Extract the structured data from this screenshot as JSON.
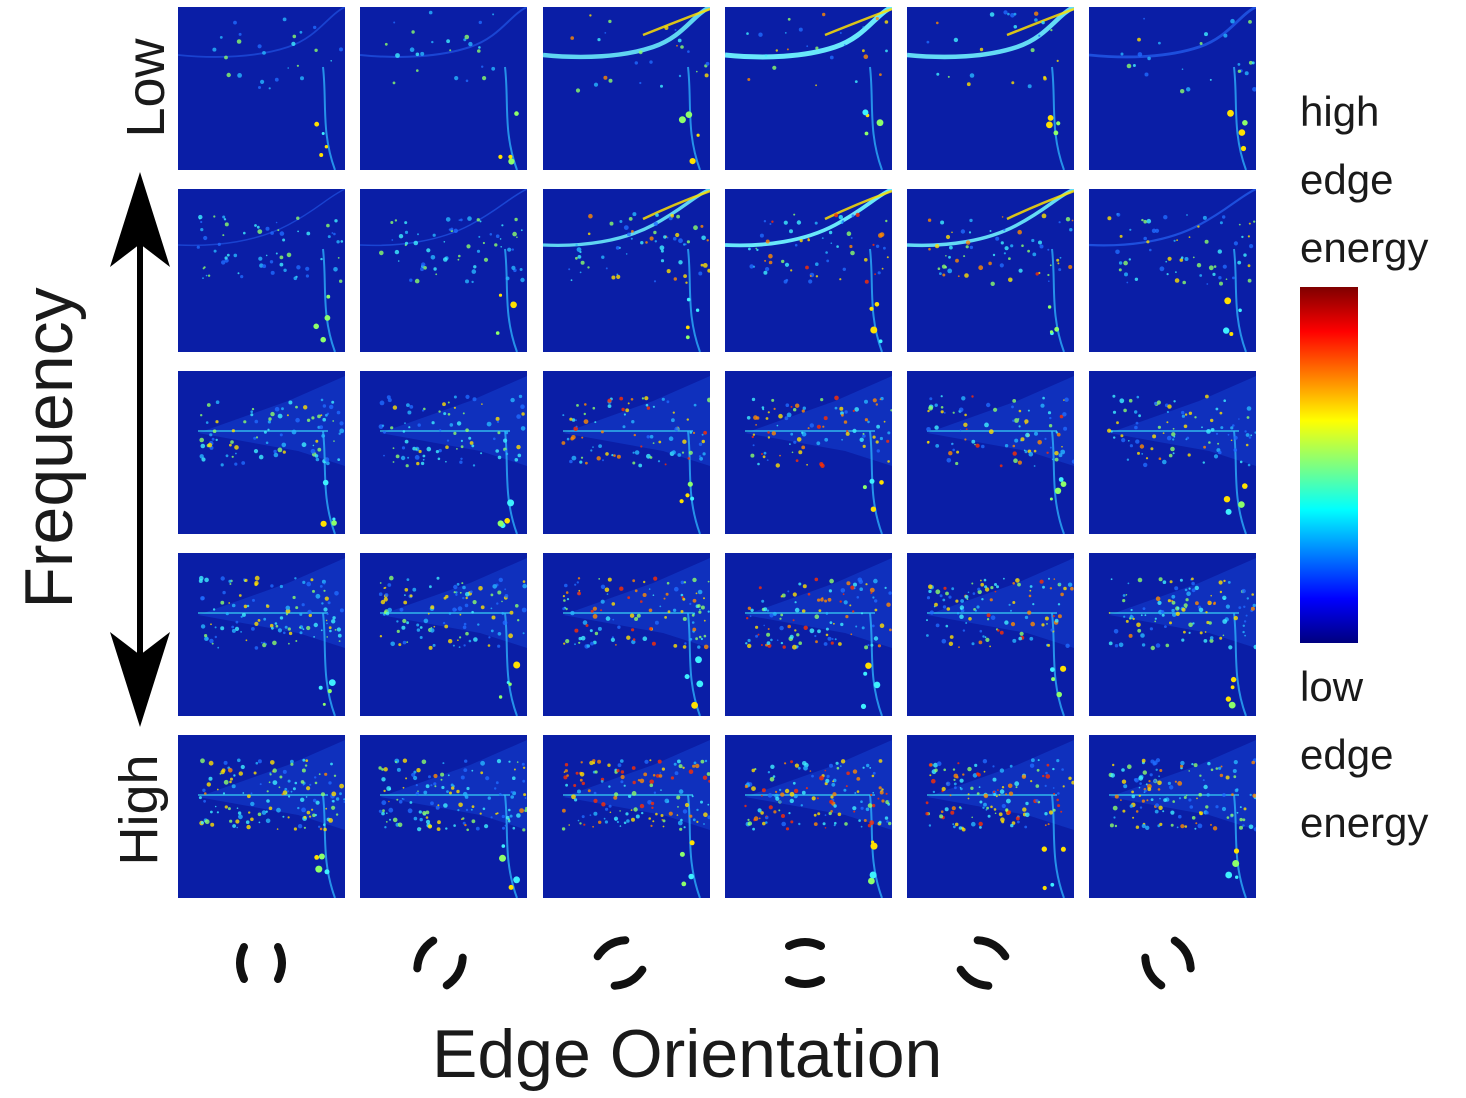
{
  "figure": {
    "y_axis": {
      "title": "Frequency",
      "low_label": "Low",
      "high_label": "High"
    },
    "x_axis": {
      "title": "Edge Orientation",
      "orientation_count": 6
    },
    "grid": {
      "rows": 5,
      "cols": 6,
      "background_color": "#0a1ea6"
    },
    "legend": {
      "high_label_lines": [
        "high",
        "edge",
        "energy"
      ],
      "low_label_lines": [
        "low",
        "edge",
        "energy"
      ],
      "colormap": [
        "#00007f",
        "#0000ff",
        "#007fff",
        "#00ffff",
        "#7fff7f",
        "#ffff00",
        "#ff7f00",
        "#ff0000",
        "#7f0000"
      ]
    }
  }
}
